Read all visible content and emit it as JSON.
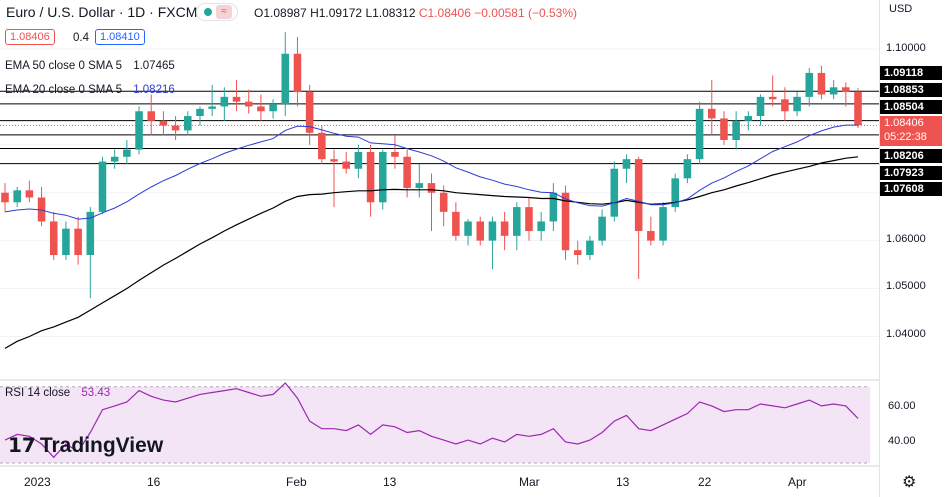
{
  "header": {
    "symbol": "Euro / U.S. Dollar · 1D · FXCM",
    "ohlc_o": "O1.08987",
    "ohlc_h": "H1.09172",
    "ohlc_l": "L1.08312",
    "ohlc_c": "C1.08406",
    "change": "−0.00581 (−0.53%)",
    "sell": "1.08406",
    "spread": "0.4",
    "buy": "1.08410"
  },
  "indicators": {
    "ema50_label": "EMA 50 close 0 SMA 5",
    "ema50_value": "1.07465",
    "ema20_label": "EMA 20 close 0 SMA 5",
    "ema20_value": "1.08216",
    "rsi_label": "RSI 14 close",
    "rsi_value": "53.43"
  },
  "axis": {
    "currency": "USD",
    "price_ticks": [
      "1.10000",
      "1.06000",
      "1.05000",
      "1.04000"
    ],
    "rsi_ticks": [
      "60.00",
      "40.00"
    ],
    "time_ticks": [
      "2023",
      "16",
      "Feb",
      "13",
      "Mar",
      "13",
      "22",
      "Apr"
    ]
  },
  "levels": [
    {
      "label": "1.09118",
      "value": 1.09118
    },
    {
      "label": "1.08853",
      "value": 1.08853
    },
    {
      "label": "1.08504",
      "value": 1.08504
    },
    {
      "label": "1.08206",
      "value": 1.08206
    },
    {
      "label": "1.07923",
      "value": 1.07923
    },
    {
      "label": "1.07608",
      "value": 1.07608
    }
  ],
  "last_price": {
    "label": "1.08406",
    "value": 1.08406,
    "countdown": "05:22:38"
  },
  "logo": "TradingView",
  "colors": {
    "up": "#26a69a",
    "down": "#ef5350",
    "ema20": "#2f3bd6",
    "ema50": "#000000",
    "rsi": "#9c27b0",
    "rsi_band": "#f3e5f5"
  },
  "chart_data": {
    "type": "candlestick",
    "ylim": [
      1.033,
      1.105
    ],
    "candles": [
      [
        1.07,
        1.072,
        1.066,
        1.068
      ],
      [
        1.068,
        1.0712,
        1.067,
        1.0705
      ],
      [
        1.0705,
        1.0725,
        1.068,
        1.069
      ],
      [
        1.069,
        1.0712,
        1.063,
        1.064
      ],
      [
        1.064,
        1.066,
        1.056,
        1.057
      ],
      [
        1.057,
        1.064,
        1.056,
        1.0625
      ],
      [
        1.0625,
        1.065,
        1.055,
        1.057
      ],
      [
        1.057,
        1.067,
        1.048,
        1.066
      ],
      [
        1.066,
        1.0775,
        1.0655,
        1.0765
      ],
      [
        1.0765,
        1.079,
        1.075,
        1.0775
      ],
      [
        1.0775,
        1.081,
        1.076,
        1.079
      ],
      [
        1.079,
        1.088,
        1.078,
        1.087
      ],
      [
        1.087,
        1.0905,
        1.082,
        1.085
      ],
      [
        1.085,
        1.087,
        1.082,
        1.084
      ],
      [
        1.084,
        1.086,
        1.081,
        1.083
      ],
      [
        1.083,
        1.087,
        1.082,
        1.086
      ],
      [
        1.086,
        1.088,
        1.084,
        1.0875
      ],
      [
        1.0875,
        1.0925,
        1.086,
        1.088
      ],
      [
        1.088,
        1.092,
        1.085,
        1.09
      ],
      [
        1.09,
        1.0935,
        1.087,
        1.089
      ],
      [
        1.089,
        1.0915,
        1.0865,
        1.088
      ],
      [
        1.088,
        1.0905,
        1.085,
        1.087
      ],
      [
        1.087,
        1.0895,
        1.0855,
        1.0885
      ],
      [
        1.0885,
        1.1035,
        1.086,
        1.099
      ],
      [
        1.099,
        1.1025,
        1.088,
        1.091
      ],
      [
        1.091,
        1.0925,
        1.08,
        1.0825
      ],
      [
        1.0825,
        1.084,
        1.076,
        1.077
      ],
      [
        1.077,
        1.079,
        1.067,
        1.0765
      ],
      [
        1.0765,
        1.0785,
        1.074,
        1.075
      ],
      [
        1.075,
        1.08,
        1.073,
        1.0785
      ],
      [
        1.0785,
        1.08,
        1.065,
        1.068
      ],
      [
        1.068,
        1.079,
        1.0665,
        1.0785
      ],
      [
        1.0785,
        1.082,
        1.075,
        1.0775
      ],
      [
        1.0775,
        1.079,
        1.069,
        1.071
      ],
      [
        1.071,
        1.076,
        1.069,
        1.072
      ],
      [
        1.072,
        1.074,
        1.062,
        1.07
      ],
      [
        1.07,
        1.0715,
        1.063,
        1.066
      ],
      [
        1.066,
        1.068,
        1.06,
        1.061
      ],
      [
        1.061,
        1.0645,
        1.059,
        1.064
      ],
      [
        1.064,
        1.065,
        1.059,
        1.06
      ],
      [
        1.06,
        1.065,
        1.054,
        1.064
      ],
      [
        1.064,
        1.066,
        1.058,
        1.061
      ],
      [
        1.061,
        1.068,
        1.058,
        1.067
      ],
      [
        1.067,
        1.069,
        1.06,
        1.062
      ],
      [
        1.062,
        1.066,
        1.06,
        1.064
      ],
      [
        1.064,
        1.072,
        1.062,
        1.07
      ],
      [
        1.07,
        1.0715,
        1.056,
        1.058
      ],
      [
        1.058,
        1.06,
        1.055,
        1.057
      ],
      [
        1.057,
        1.061,
        1.056,
        1.06
      ],
      [
        1.06,
        1.0665,
        1.059,
        1.065
      ],
      [
        1.065,
        1.0765,
        1.064,
        1.075
      ],
      [
        1.075,
        1.078,
        1.072,
        1.077
      ],
      [
        1.077,
        1.0775,
        1.052,
        1.062
      ],
      [
        1.062,
        1.065,
        1.059,
        1.06
      ],
      [
        1.06,
        1.068,
        1.059,
        1.067
      ],
      [
        1.067,
        1.074,
        1.066,
        1.073
      ],
      [
        1.073,
        1.078,
        1.072,
        1.077
      ],
      [
        1.077,
        1.089,
        1.076,
        1.0875
      ],
      [
        1.0875,
        1.0935,
        1.082,
        1.0855
      ],
      [
        1.0855,
        1.087,
        1.08,
        1.081
      ],
      [
        1.081,
        1.087,
        1.079,
        1.085
      ],
      [
        1.085,
        1.087,
        1.083,
        1.086
      ],
      [
        1.086,
        1.0905,
        1.084,
        1.09
      ],
      [
        1.09,
        1.0945,
        1.088,
        1.0895
      ],
      [
        1.0895,
        1.092,
        1.085,
        1.087
      ],
      [
        1.087,
        1.091,
        1.086,
        1.09
      ],
      [
        1.09,
        1.096,
        1.088,
        1.095
      ],
      [
        1.095,
        1.0965,
        1.0895,
        1.0905
      ],
      [
        1.0905,
        1.0935,
        1.0895,
        1.092
      ],
      [
        1.092,
        1.093,
        1.088,
        1.091
      ],
      [
        1.091,
        1.0918,
        1.0835,
        1.0841
      ]
    ],
    "ema20": [
      1.066,
      1.0664,
      1.0666,
      1.0664,
      1.0657,
      1.0653,
      1.0645,
      1.0647,
      1.0658,
      1.0668,
      1.0681,
      1.0697,
      1.0712,
      1.0725,
      1.0736,
      1.0749,
      1.0761,
      1.0771,
      1.0782,
      1.0791,
      1.0799,
      1.0806,
      1.0813,
      1.083,
      1.0839,
      1.0838,
      1.0831,
      1.0824,
      1.0818,
      1.0816,
      1.0804,
      1.0802,
      1.08,
      1.0792,
      1.0785,
      1.0777,
      1.0766,
      1.0752,
      1.0743,
      1.0733,
      1.0726,
      1.0718,
      1.0713,
      1.0706,
      1.0701,
      1.07,
      1.0687,
      1.0679,
      1.0673,
      1.0672,
      1.0679,
      1.0688,
      1.0682,
      1.0675,
      1.0675,
      1.0679,
      1.0687,
      1.0705,
      1.072,
      1.0731,
      1.0744,
      1.0756,
      1.0771,
      1.0786,
      1.0796,
      1.0806,
      1.0819,
      1.0829,
      1.0837,
      1.0841,
      1.0841
    ],
    "ema50": [
      1.0375,
      1.039,
      1.04,
      1.0412,
      1.042,
      1.043,
      1.044,
      1.0455,
      1.047,
      1.0485,
      1.05,
      1.0517,
      1.0533,
      1.0549,
      1.0563,
      1.0578,
      1.0593,
      1.0606,
      1.062,
      1.0633,
      1.0645,
      1.0657,
      1.0668,
      1.0682,
      1.0692,
      1.0696,
      1.0697,
      1.07,
      1.0702,
      1.0704,
      1.0704,
      1.0706,
      1.0707,
      1.0706,
      1.0706,
      1.0706,
      1.0704,
      1.07,
      1.0698,
      1.0696,
      1.0694,
      1.0692,
      1.0691,
      1.069,
      1.0688,
      1.0688,
      1.0683,
      1.068,
      1.0677,
      1.0676,
      1.0679,
      1.0684,
      1.068,
      1.0676,
      1.0677,
      1.068,
      1.0685,
      1.0692,
      1.07,
      1.0706,
      1.0714,
      1.0721,
      1.0729,
      1.0737,
      1.0743,
      1.0749,
      1.0755,
      1.0762,
      1.0767,
      1.0772,
      1.0775
    ],
    "rsi": [
      42,
      45,
      44,
      40,
      33,
      40,
      36,
      46,
      58,
      60,
      62,
      68,
      65,
      63,
      62,
      64,
      66,
      67,
      68,
      69,
      67,
      65,
      66,
      72,
      64,
      52,
      48,
      48,
      47,
      50,
      45,
      50,
      49,
      46,
      47,
      44,
      42,
      40,
      42,
      40,
      43,
      41,
      45,
      44,
      45,
      48,
      41,
      40,
      42,
      46,
      52,
      55,
      48,
      47,
      50,
      53,
      56,
      62,
      60,
      57,
      58,
      58,
      61,
      60,
      59,
      61,
      63,
      60,
      61,
      60,
      53.43
    ],
    "rsi_ylim": [
      30,
      72
    ],
    "rsi_band": [
      30,
      70
    ]
  }
}
